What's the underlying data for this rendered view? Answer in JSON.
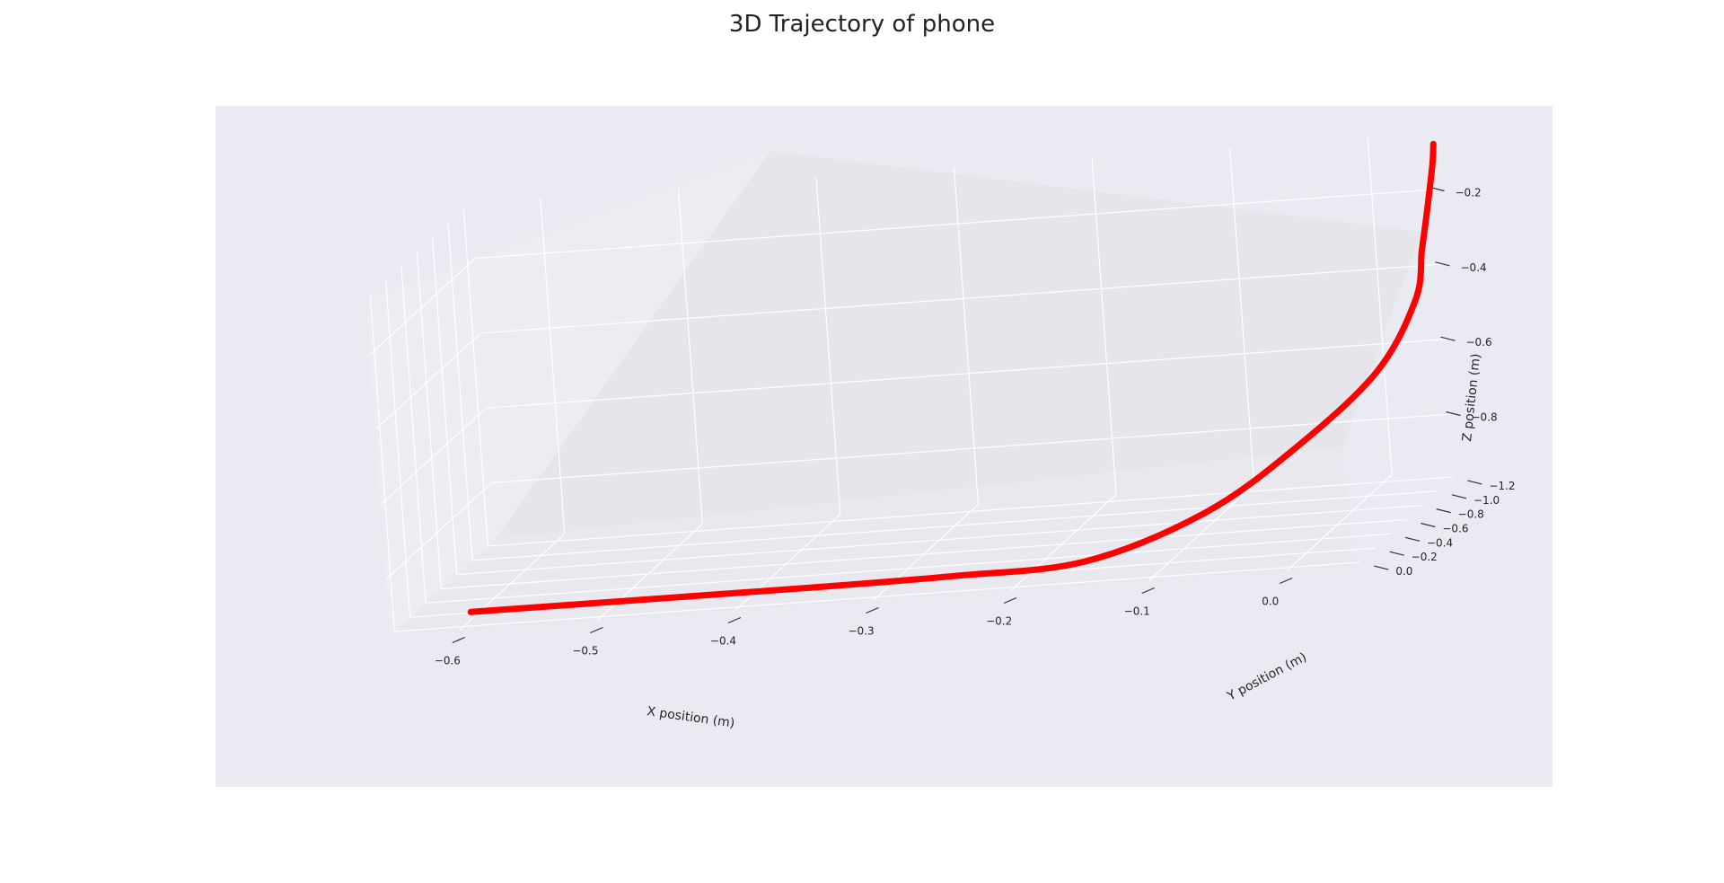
{
  "chart_data": {
    "type": "line",
    "projection": "3d",
    "title": "3D Trajectory of phone",
    "xlabel": "X position (m)",
    "ylabel": "Y position (m)",
    "zlabel": "Z position (m)",
    "xlim": [
      -0.65,
      0.05
    ],
    "ylim": [
      -1.3,
      0.05
    ],
    "zlim": [
      -0.95,
      -0.05
    ],
    "xticks": [
      "−0.6",
      "−0.5",
      "−0.4",
      "−0.3",
      "−0.2",
      "−0.1",
      "0.0"
    ],
    "yticks": [
      "0.0",
      "−0.2",
      "−0.4",
      "−0.6",
      "−0.8",
      "−1.0",
      "−1.2"
    ],
    "zticks": [
      "−0.2",
      "−0.4",
      "−0.6",
      "−0.8"
    ],
    "grid": true,
    "colors": {
      "line": "#ff0000",
      "background": "#eaeaf2",
      "grid": "#ffffff"
    },
    "series": [
      {
        "x": [
          -0.6,
          -0.48,
          -0.36,
          -0.25,
          -0.16,
          -0.08,
          -0.02,
          0.03,
          0.05,
          0.05,
          0.05,
          0.05,
          0.05
        ],
        "y": [
          -0.1,
          -0.1,
          -0.1,
          -0.12,
          -0.2,
          -0.35,
          -0.5,
          -0.7,
          -0.9,
          -1.02,
          -1.12,
          -1.22,
          -1.25
        ],
        "z": [
          -0.93,
          -0.93,
          -0.93,
          -0.93,
          -0.93,
          -0.85,
          -0.72,
          -0.57,
          -0.42,
          -0.31,
          -0.22,
          -0.12,
          -0.07
        ]
      }
    ]
  }
}
